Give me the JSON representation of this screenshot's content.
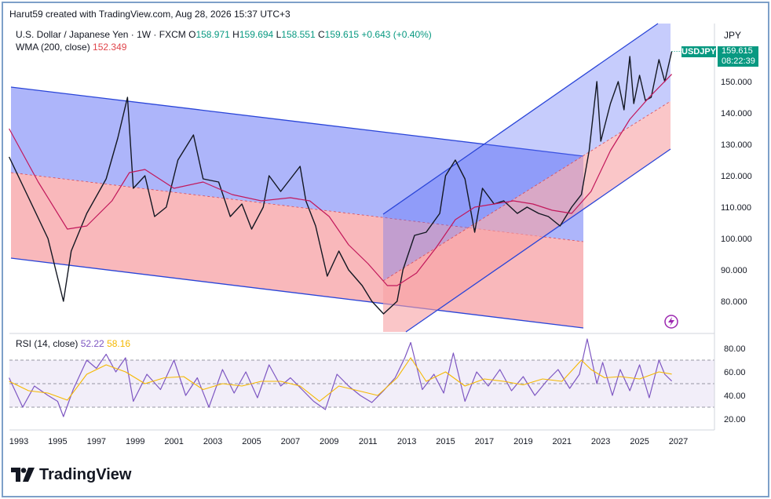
{
  "header": {
    "text": "Harut59 created with TradingView.com, Aug 28, 2026 15:37 UTC+3"
  },
  "legend": {
    "symbol": "U.S. Dollar / Japanese Yen · 1W · FXCM",
    "ohlc_prefix": "O",
    "open": "158.971",
    "high_prefix": "H",
    "high": "159.694",
    "low_prefix": "L",
    "low": "158.551",
    "close_prefix": "C",
    "close": "159.615",
    "change": "+0.643 (+0.40%)",
    "wma_label": "WMA (200, close)",
    "wma_value": "152.349",
    "rsi_label": "RSI (14, close)",
    "rsi_value": "52.22",
    "rsi_ma_value": "58.16"
  },
  "axis": {
    "currency": "JPY"
  },
  "badges": {
    "symbol": "USDJPY",
    "price": "159.615",
    "countdown": "08:22:39"
  },
  "colors": {
    "up": "#089981",
    "wma": "#c2185b",
    "rsi": "#7e57c2",
    "rsi_ma": "#f5b800",
    "channel_blue": "#5b6cf5",
    "channel_red": "#f7a0a4",
    "channel_line": "#2a45d8"
  },
  "branding": {
    "logo_text": "TradingView"
  },
  "icons": {
    "flash": "lightning-icon",
    "logo": "tradingview-logo-icon"
  },
  "chart_data": [
    {
      "type": "line",
      "title": "U.S. Dollar / Japanese Yen · 1W · FXCM",
      "xlabel": "",
      "ylabel": "JPY",
      "xlim": [
        1992.5,
        2027.7
      ],
      "ylim": [
        70,
        165
      ],
      "x_ticks": [
        "1993",
        "1995",
        "1997",
        "1999",
        "2001",
        "2003",
        "2005",
        "2007",
        "2009",
        "2011",
        "2013",
        "2015",
        "2017",
        "2019",
        "2021",
        "2023",
        "2025",
        "2027"
      ],
      "y_ticks": [
        "80.000",
        "90.000",
        "100.000",
        "110.000",
        "120.000",
        "130.000",
        "140.000",
        "150.000"
      ],
      "grid": false,
      "series": [
        {
          "name": "USDJPY",
          "x": [
            1992.5,
            1993.5,
            1994.5,
            1995.3,
            1995.7,
            1996.5,
            1997.5,
            1998.1,
            1998.6,
            1998.9,
            1999.5,
            2000.0,
            2000.6,
            2001.2,
            2002.0,
            2002.5,
            2003.3,
            2003.9,
            2004.5,
            2005.0,
            2005.6,
            2005.9,
            2006.5,
            2007.0,
            2007.5,
            2007.8,
            2008.3,
            2008.9,
            2009.5,
            2010.0,
            2010.7,
            2011.2,
            2011.8,
            2012.5,
            2012.8,
            2013.4,
            2014.0,
            2014.7,
            2015.0,
            2015.5,
            2016.0,
            2016.5,
            2016.9,
            2017.5,
            2018.0,
            2018.7,
            2019.2,
            2019.8,
            2020.3,
            2020.9,
            2021.5,
            2022.0,
            2022.4,
            2022.8,
            2023.0,
            2023.5,
            2023.9,
            2024.2,
            2024.5,
            2024.7,
            2025.0,
            2025.3,
            2025.6,
            2026.0,
            2026.3,
            2026.66
          ],
          "values": [
            126,
            113,
            100,
            80,
            96,
            108,
            119,
            132,
            145,
            116,
            120,
            107,
            110,
            125,
            133,
            119,
            118,
            107,
            111,
            103,
            110,
            120,
            115,
            119,
            123,
            112,
            104,
            88,
            96,
            90,
            85,
            80,
            76,
            80,
            90,
            101,
            102,
            108,
            120,
            125,
            119,
            102,
            116,
            111,
            112,
            108,
            110,
            108,
            107,
            104,
            110,
            114,
            128,
            150,
            131,
            143,
            150,
            141,
            158,
            143,
            152,
            144,
            145,
            157,
            150,
            159.615
          ]
        },
        {
          "name": "WMA (200, close)",
          "x": [
            1992.5,
            1994.0,
            1995.5,
            1996.5,
            1997.8,
            1998.7,
            1999.5,
            2001.0,
            2002.5,
            2004.0,
            2005.5,
            2007.0,
            2008.0,
            2009.0,
            2010.0,
            2011.0,
            2012.0,
            2012.5,
            2013.5,
            2014.5,
            2015.5,
            2016.5,
            2017.5,
            2018.5,
            2019.5,
            2020.5,
            2021.5,
            2022.5,
            2023.5,
            2024.5,
            2025.5,
            2026.66
          ],
          "values": [
            135,
            118,
            103,
            104,
            112,
            121,
            122,
            116,
            118,
            114,
            112,
            113,
            112,
            107,
            98,
            92,
            85,
            85,
            89,
            97,
            106,
            110,
            111,
            112,
            111,
            109,
            108,
            115,
            128,
            138,
            145,
            152.349
          ]
        }
      ]
    },
    {
      "type": "line",
      "title": "RSI (14, close)",
      "xlabel": "",
      "ylabel": "",
      "xlim": [
        1992.5,
        2027.7
      ],
      "ylim": [
        15,
        90
      ],
      "y_ticks": [
        "20.00",
        "40.00",
        "60.00",
        "80.00"
      ],
      "bands": [
        30,
        50,
        70
      ],
      "grid": false,
      "series": [
        {
          "name": "RSI",
          "x": [
            1992.5,
            1993.2,
            1993.8,
            1994.5,
            1995.0,
            1995.3,
            1995.8,
            1996.5,
            1997.0,
            1997.5,
            1998.0,
            1998.5,
            1998.9,
            1999.6,
            2000.3,
            2001.0,
            2001.6,
            2002.2,
            2002.8,
            2003.5,
            2004.1,
            2004.7,
            2005.3,
            2005.9,
            2006.5,
            2007.0,
            2007.6,
            2008.2,
            2008.8,
            2009.4,
            2010.0,
            2010.6,
            2011.2,
            2011.8,
            2012.4,
            2012.9,
            2013.2,
            2013.8,
            2014.4,
            2014.9,
            2015.4,
            2016.0,
            2016.6,
            2017.2,
            2017.8,
            2018.4,
            2019.0,
            2019.6,
            2020.2,
            2020.8,
            2021.4,
            2021.9,
            2022.3,
            2022.8,
            2023.1,
            2023.6,
            2024.0,
            2024.5,
            2025.0,
            2025.5,
            2026.0,
            2026.3,
            2026.66
          ],
          "values": [
            55,
            30,
            48,
            40,
            35,
            22,
            45,
            70,
            63,
            75,
            60,
            72,
            35,
            58,
            45,
            70,
            40,
            55,
            30,
            62,
            42,
            60,
            38,
            66,
            48,
            55,
            45,
            35,
            28,
            58,
            48,
            40,
            34,
            44,
            55,
            72,
            85,
            45,
            58,
            42,
            76,
            35,
            60,
            48,
            62,
            44,
            56,
            40,
            52,
            62,
            46,
            58,
            88,
            50,
            68,
            40,
            62,
            44,
            66,
            38,
            70,
            58,
            52.22
          ]
        },
        {
          "name": "RSI MA",
          "x": [
            1992.5,
            1993.5,
            1994.5,
            1995.5,
            1996.5,
            1997.5,
            1998.5,
            1999.5,
            2000.5,
            2001.5,
            2002.5,
            2003.5,
            2004.5,
            2005.5,
            2006.5,
            2007.5,
            2008.5,
            2009.5,
            2010.5,
            2011.5,
            2012.5,
            2013.2,
            2014.0,
            2015.0,
            2016.0,
            2017.0,
            2018.0,
            2019.0,
            2020.0,
            2021.0,
            2022.0,
            2022.5,
            2023.2,
            2024.0,
            2025.0,
            2026.0,
            2026.66
          ],
          "values": [
            52,
            44,
            42,
            36,
            58,
            66,
            60,
            50,
            55,
            56,
            45,
            50,
            48,
            52,
            52,
            48,
            35,
            48,
            44,
            40,
            55,
            72,
            52,
            60,
            48,
            54,
            52,
            49,
            54,
            52,
            70,
            62,
            55,
            56,
            54,
            60,
            58.16
          ]
        }
      ]
    }
  ]
}
